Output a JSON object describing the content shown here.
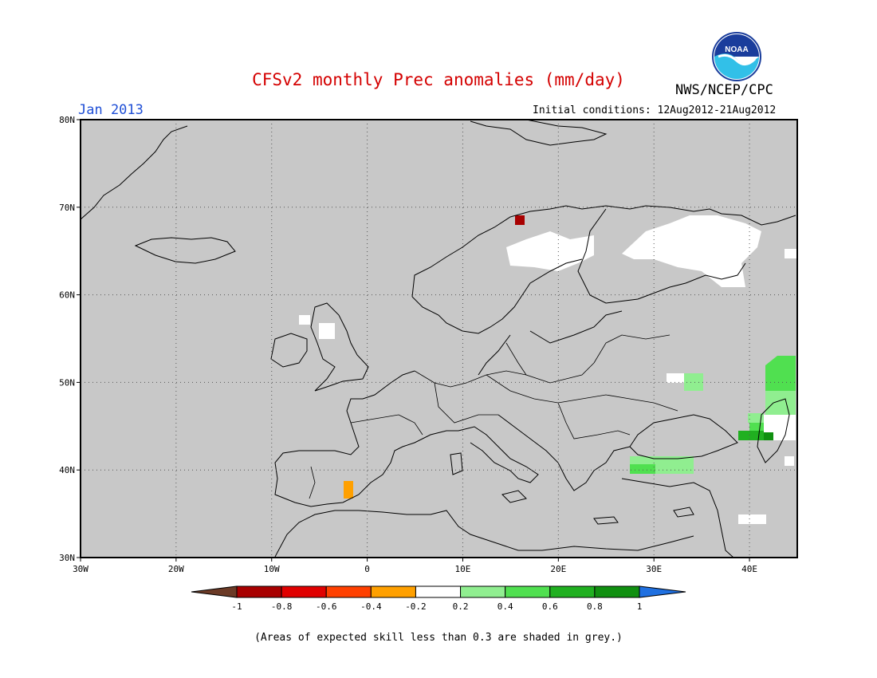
{
  "title": "CFSv2 monthly Prec anomalies (mm/day)",
  "period": "Jan 2013",
  "initial_conditions": "Initial conditions: 12Aug2012-21Aug2012",
  "agency": "NWS/NCEP/CPC",
  "logo_text": "NOAA",
  "footnote": "(Areas of expected skill less than 0.3 are shaded in grey.)",
  "map": {
    "region": "Europe",
    "lon_range": [
      -30,
      45
    ],
    "lat_range": [
      30,
      80
    ],
    "lat_ticks": [
      {
        "value": 80,
        "label": "80N"
      },
      {
        "value": 70,
        "label": "70N"
      },
      {
        "value": 60,
        "label": "60N"
      },
      {
        "value": 50,
        "label": "50N"
      },
      {
        "value": 40,
        "label": "40N"
      },
      {
        "value": 30,
        "label": "30N"
      }
    ],
    "lon_ticks": [
      {
        "value": -30,
        "label": "30W"
      },
      {
        "value": -20,
        "label": "20W"
      },
      {
        "value": -10,
        "label": "10W"
      },
      {
        "value": 0,
        "label": "0"
      },
      {
        "value": 10,
        "label": "10E"
      },
      {
        "value": 20,
        "label": "20E"
      },
      {
        "value": 30,
        "label": "30E"
      },
      {
        "value": 40,
        "label": "40E"
      }
    ],
    "background_color": "#c8c8c8",
    "gridlines": "dotted"
  },
  "colorbar": {
    "labels": [
      "-1",
      "-0.8",
      "-0.6",
      "-0.4",
      "-0.2",
      "0.2",
      "0.4",
      "0.6",
      "0.8",
      "1"
    ],
    "colors": [
      "#6b3a26",
      "#a80000",
      "#e00000",
      "#ff4000",
      "#ffa000",
      "#ffffff",
      "#90ee90",
      "#50e050",
      "#20b020",
      "#109010",
      "#2070e0"
    ]
  }
}
